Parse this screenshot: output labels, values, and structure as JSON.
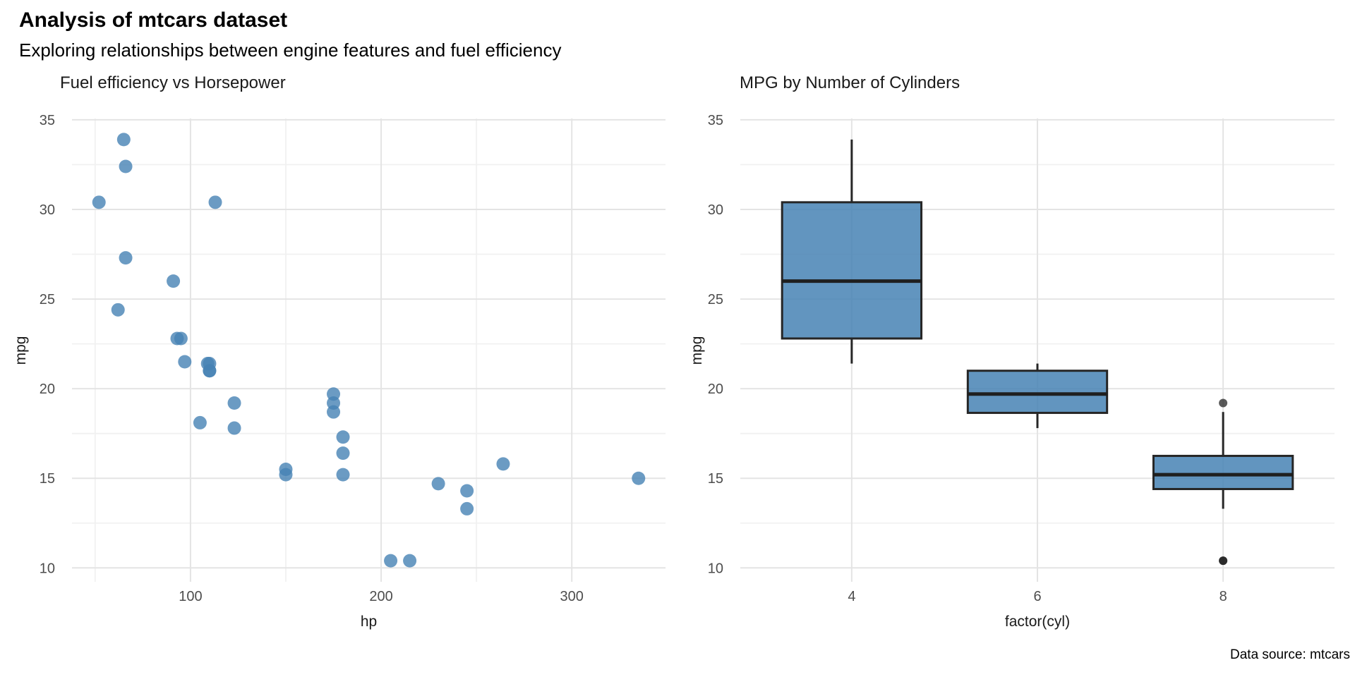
{
  "header": {
    "title": "Analysis of mtcars dataset",
    "subtitle": "Exploring relationships between engine features and fuel efficiency"
  },
  "caption": {
    "text": "Data source: mtcars"
  },
  "colors": {
    "point_fill": "rgba(70,130,180,0.8)",
    "box_fill": "rgba(70,130,180,0.85)",
    "box_stroke": "#262626",
    "median_stroke": "#1f1f1f",
    "outlier_fill": "#1a1a1a",
    "grid_major": "#e4e4e4",
    "grid_minor": "#f1f1f1",
    "tick_label": "#4d4d4d"
  },
  "chart_data": [
    {
      "type": "scatter",
      "title": "Fuel efficiency vs Horsepower",
      "xlabel": "hp",
      "ylabel": "mpg",
      "xlim": [
        37.85,
        349.15
      ],
      "ylim": [
        9.225,
        35.075
      ],
      "x_ticks": [
        100,
        200,
        300
      ],
      "x_minor_ticks": [
        50,
        150,
        250
      ],
      "y_ticks": [
        10,
        15,
        20,
        25,
        30,
        35
      ],
      "y_minor_ticks": [
        12.5,
        17.5,
        22.5,
        27.5,
        32.5
      ],
      "grid": true,
      "legend": false,
      "points_hp_mpg": [
        [
          110,
          21.0
        ],
        [
          110,
          21.0
        ],
        [
          93,
          22.8
        ],
        [
          110,
          21.4
        ],
        [
          175,
          18.7
        ],
        [
          105,
          18.1
        ],
        [
          245,
          14.3
        ],
        [
          62,
          24.4
        ],
        [
          95,
          22.8
        ],
        [
          123,
          19.2
        ],
        [
          123,
          17.8
        ],
        [
          180,
          16.4
        ],
        [
          180,
          17.3
        ],
        [
          180,
          15.2
        ],
        [
          205,
          10.4
        ],
        [
          215,
          10.4
        ],
        [
          230,
          14.7
        ],
        [
          66,
          32.4
        ],
        [
          52,
          30.4
        ],
        [
          65,
          33.9
        ],
        [
          97,
          21.5
        ],
        [
          150,
          15.5
        ],
        [
          150,
          15.2
        ],
        [
          245,
          13.3
        ],
        [
          175,
          19.2
        ],
        [
          66,
          27.3
        ],
        [
          91,
          26.0
        ],
        [
          113,
          30.4
        ],
        [
          264,
          15.8
        ],
        [
          175,
          19.7
        ],
        [
          335,
          15.0
        ],
        [
          109,
          21.4
        ]
      ]
    },
    {
      "type": "boxplot",
      "title": "MPG by Number of Cylinders",
      "xlabel": "factor(cyl)",
      "ylabel": "mpg",
      "categories": [
        "4",
        "6",
        "8"
      ],
      "ylim": [
        9.225,
        35.075
      ],
      "y_ticks": [
        10,
        15,
        20,
        25,
        30,
        35
      ],
      "y_minor_ticks": [
        12.5,
        17.5,
        22.5,
        27.5,
        32.5
      ],
      "grid": true,
      "legend": false,
      "boxes": [
        {
          "category": "4",
          "whisker_low": 21.4,
          "q1": 22.8,
          "median": 26.0,
          "q3": 30.4,
          "whisker_high": 33.9,
          "outliers": []
        },
        {
          "category": "6",
          "whisker_low": 17.8,
          "q1": 18.65,
          "median": 19.7,
          "q3": 21.0,
          "whisker_high": 21.4,
          "outliers": []
        },
        {
          "category": "8",
          "whisker_low": 13.3,
          "q1": 14.4,
          "median": 15.2,
          "q3": 16.25,
          "whisker_high": 18.7,
          "outliers": [
            19.2,
            10.4,
            10.4
          ]
        }
      ]
    }
  ]
}
